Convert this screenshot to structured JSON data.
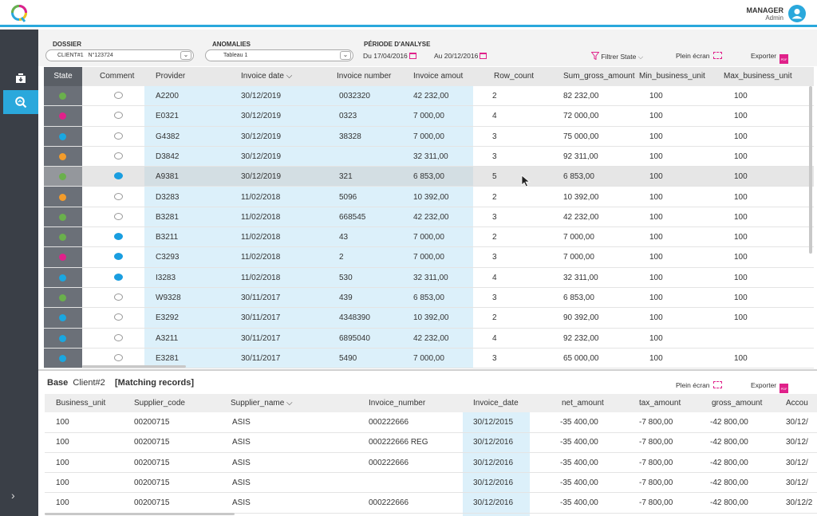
{
  "header": {
    "user_role": "MANAGER",
    "user_name": "Admin"
  },
  "colors": {
    "accent": "#2aa8dc",
    "pink": "#e0218a",
    "green": "#6ab04c",
    "blue": "#1aa7e0",
    "orange": "#f39c2b",
    "sidebar": "#3a3f47"
  },
  "filters": {
    "dossier_label": "DOSSIER",
    "dossier_client": "CLIENT#1",
    "dossier_value": "N°123724",
    "anomalies_label": "ANOMALIES",
    "anomalies_value": "Tableau 1",
    "periode_label": "PÉRIODE D'ANALYSE",
    "date_from": "Du 17/04/2016",
    "date_to": "Au 20/12/2016",
    "filter_state": "Filtrer State",
    "fullscreen": "Plein écran",
    "export": "Exporter",
    "pdf_badge": "PDF"
  },
  "main": {
    "headers": [
      "State",
      "Comment",
      "Provider",
      "Invoice date",
      "Invoice number",
      "Invoice amout",
      "Row_count",
      "Sum_gross_amount",
      "Min_business_unit",
      "Max_business_unit"
    ],
    "rows": [
      {
        "state": "green",
        "comment": "outline",
        "provider": "A2200",
        "date": "30/12/2019",
        "number": "0032320",
        "amount": "42 232,00",
        "count": "2",
        "sum": "82 232,00",
        "min": "100",
        "max": "100"
      },
      {
        "state": "pink",
        "comment": "outline",
        "provider": "E0321",
        "date": "30/12/2019",
        "number": "0323",
        "amount": "7 000,00",
        "count": "4",
        "sum": "72 000,00",
        "min": "100",
        "max": "100"
      },
      {
        "state": "blue",
        "comment": "outline",
        "provider": "G4382",
        "date": "30/12/2019",
        "number": "38328",
        "amount": "7 000,00",
        "count": "3",
        "sum": "75 000,00",
        "min": "100",
        "max": "100"
      },
      {
        "state": "orange",
        "comment": "outline",
        "provider": "D3842",
        "date": "30/12/2019",
        "number": "",
        "amount": "32 311,00",
        "count": "3",
        "sum": "92 311,00",
        "min": "100",
        "max": "100"
      },
      {
        "state": "green",
        "comment": "filled",
        "provider": "A9381",
        "date": "30/12/2019",
        "number": "321",
        "amount": "6 853,00",
        "count": "5",
        "sum": "6 853,00",
        "min": "100",
        "max": "100"
      },
      {
        "state": "orange",
        "comment": "outline",
        "provider": "D3283",
        "date": "11/02/2018",
        "number": "5096",
        "amount": "10 392,00",
        "count": "2",
        "sum": "10 392,00",
        "min": "100",
        "max": "100"
      },
      {
        "state": "green",
        "comment": "outline",
        "provider": "B3281",
        "date": "11/02/2018",
        "number": "668545",
        "amount": "42 232,00",
        "count": "3",
        "sum": "42 232,00",
        "min": "100",
        "max": "100"
      },
      {
        "state": "green",
        "comment": "filled",
        "provider": "B3211",
        "date": "11/02/2018",
        "number": "43",
        "amount": "7 000,00",
        "count": "2",
        "sum": "7 000,00",
        "min": "100",
        "max": "100"
      },
      {
        "state": "pink",
        "comment": "filled",
        "provider": "C3293",
        "date": "11/02/2018",
        "number": "2",
        "amount": "7 000,00",
        "count": "3",
        "sum": "7 000,00",
        "min": "100",
        "max": "100"
      },
      {
        "state": "blue",
        "comment": "filled",
        "provider": "I3283",
        "date": "11/02/2018",
        "number": "530",
        "amount": "32 311,00",
        "count": "4",
        "sum": "32 311,00",
        "min": "100",
        "max": "100"
      },
      {
        "state": "green",
        "comment": "outline",
        "provider": "W9328",
        "date": "30/11/2017",
        "number": "439",
        "amount": "6 853,00",
        "count": "3",
        "sum": "6 853,00",
        "min": "100",
        "max": "100"
      },
      {
        "state": "blue",
        "comment": "outline",
        "provider": "E3292",
        "date": "30/11/2017",
        "number": "4348390",
        "amount": "10 392,00",
        "count": "2",
        "sum": "90 392,00",
        "min": "100",
        "max": "100"
      },
      {
        "state": "blue",
        "comment": "outline",
        "provider": "A3211",
        "date": "30/11/2017",
        "number": "6895040",
        "amount": "42 232,00",
        "count": "4",
        "sum": "92 232,00",
        "min": "100",
        "max": ""
      },
      {
        "state": "blue",
        "comment": "outline",
        "provider": "E3281",
        "date": "30/11/2017",
        "number": "5490",
        "amount": "7 000,00",
        "count": "3",
        "sum": "65 000,00",
        "min": "100",
        "max": "100"
      }
    ]
  },
  "bottom": {
    "base_label": "Base",
    "client": "Client#2",
    "matching": "[Matching records]",
    "fullscreen": "Plein écran",
    "export": "Exporter",
    "headers": [
      "Business_unit",
      "Supplier_code",
      "Supplier_name",
      "Invoice_number",
      "Invoice_date",
      "net_amount",
      "tax_amount",
      "gross_amount",
      "Accou"
    ],
    "rows": [
      {
        "bu": "100",
        "code": "00200715",
        "name": "ASIS",
        "number": "000222666",
        "date": "30/12/2015",
        "net": "-35 400,00",
        "tax": "-7 800,00",
        "gross": "-42 800,00",
        "acc": "30/12/"
      },
      {
        "bu": "100",
        "code": "00200715",
        "name": "ASIS",
        "number": "000222666 REG",
        "date": "30/12/2016",
        "net": "-35 400,00",
        "tax": "-7 800,00",
        "gross": "-42 800,00",
        "acc": "30/12/"
      },
      {
        "bu": "100",
        "code": "00200715",
        "name": "ASIS",
        "number": "000222666",
        "date": "30/12/2016",
        "net": "-35 400,00",
        "tax": "-7 800,00",
        "gross": "-42 800,00",
        "acc": "30/12/"
      },
      {
        "bu": "100",
        "code": "00200715",
        "name": "ASIS",
        "number": "",
        "date": "30/12/2016",
        "net": "-35 400,00",
        "tax": "-7 800,00",
        "gross": "-42 800,00",
        "acc": "30/12/"
      },
      {
        "bu": "100",
        "code": "00200715",
        "name": "ASIS",
        "number": "000222666",
        "date": "30/12/2016",
        "net": "-35 400,00",
        "tax": "-7 800,00",
        "gross": "-42 800,00",
        "acc": "30/12/2"
      }
    ]
  }
}
